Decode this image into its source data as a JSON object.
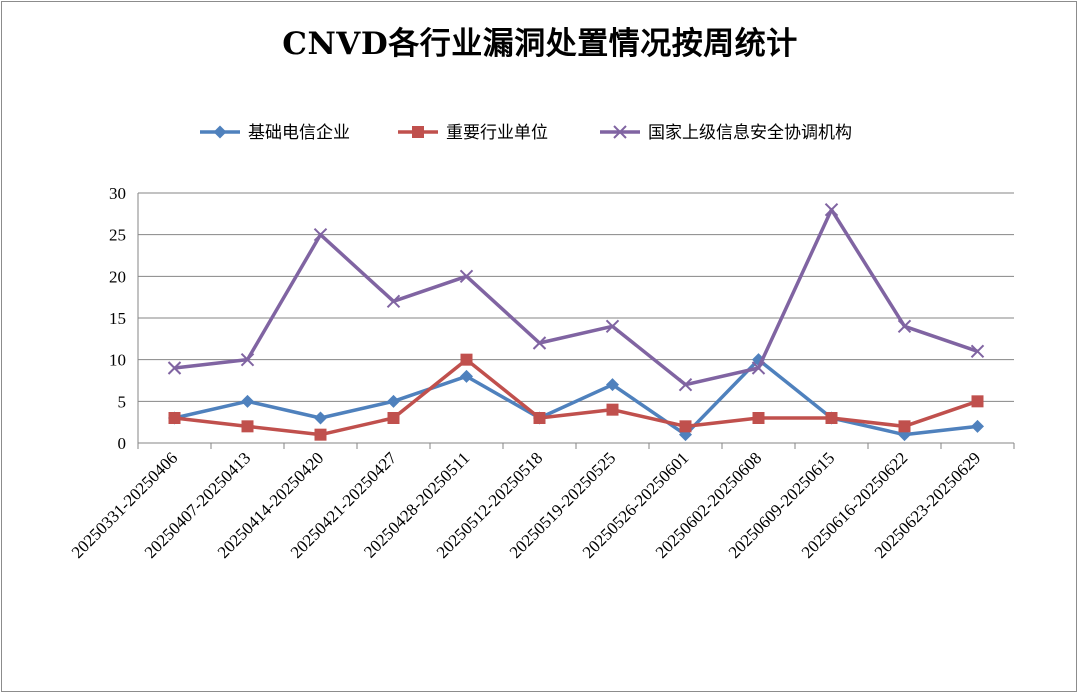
{
  "chart_data": {
    "type": "line",
    "title": "CNVD各行业漏洞处置情况按周统计",
    "categories": [
      "20250331-20250406",
      "20250407-20250413",
      "20250414-20250420",
      "20250421-20250427",
      "20250428-20250511",
      "20250512-20250518",
      "20250519-20250525",
      "20250526-20250601",
      "20250602-20250608",
      "20250609-20250615",
      "20250616-20250622",
      "20250623-20250629"
    ],
    "series": [
      {
        "name": "基础电信企业",
        "color": "#4f81bd",
        "marker": "diamond",
        "values": [
          3,
          5,
          3,
          5,
          8,
          3,
          7,
          1,
          10,
          3,
          1,
          2
        ]
      },
      {
        "name": "重要行业单位",
        "color": "#c0504d",
        "marker": "square",
        "values": [
          3,
          2,
          1,
          3,
          10,
          3,
          4,
          2,
          3,
          3,
          2,
          5
        ]
      },
      {
        "name": "国家上级信息安全协调机构",
        "color": "#8064a2",
        "marker": "x",
        "values": [
          9,
          10,
          25,
          17,
          20,
          12,
          14,
          7,
          9,
          28,
          14,
          11
        ]
      }
    ],
    "ylim": [
      0,
      30
    ],
    "yticks": [
      0,
      5,
      10,
      15,
      20,
      25,
      30
    ],
    "grid": true,
    "legend_position": "top"
  }
}
